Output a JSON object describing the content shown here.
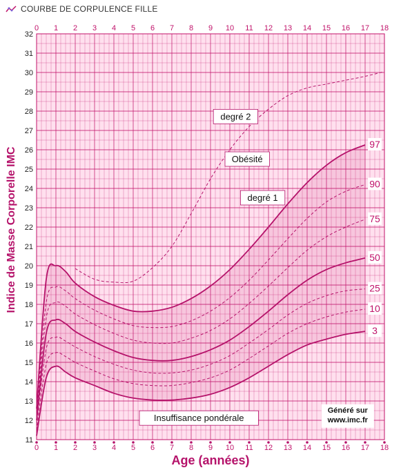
{
  "header": {
    "title": "COURBE DE CORPULENCE FILLE"
  },
  "chart_data": {
    "type": "line",
    "title": "COURBE DE CORPULENCE FILLE",
    "xlabel": "Age (années)",
    "ylabel": "Indice de Masse Corporelle  IMC",
    "xlim": [
      0,
      18
    ],
    "ylim": [
      11,
      32
    ],
    "x_ticks": [
      0,
      1,
      2,
      3,
      4,
      5,
      6,
      7,
      8,
      9,
      10,
      11,
      12,
      13,
      14,
      15,
      16,
      17,
      18
    ],
    "y_ticks": [
      11,
      12,
      13,
      14,
      15,
      16,
      17,
      18,
      19,
      20,
      21,
      22,
      23,
      24,
      25,
      26,
      27,
      28,
      29,
      30,
      31,
      32
    ],
    "grid": true,
    "colors": {
      "line": "#b5126a",
      "shade": "#f7c6dd",
      "background": "#ffe0ee",
      "grid": "#c0126a"
    },
    "series": [
      {
        "name": "3",
        "style": "solid",
        "x": [
          0,
          0.5,
          1,
          1.5,
          2,
          3,
          4,
          5,
          6,
          7,
          8,
          9,
          10,
          11,
          12,
          13,
          14,
          15,
          16,
          17
        ],
        "y": [
          11.2,
          14.2,
          14.8,
          14.5,
          14.2,
          13.8,
          13.4,
          13.15,
          13.05,
          13.05,
          13.15,
          13.35,
          13.7,
          14.2,
          14.8,
          15.4,
          15.9,
          16.2,
          16.45,
          16.6
        ]
      },
      {
        "name": "10",
        "style": "dashed",
        "x": [
          0,
          0.5,
          1,
          1.5,
          2,
          3,
          4,
          5,
          6,
          7,
          8,
          9,
          10,
          11,
          12,
          13,
          14,
          15,
          16,
          17
        ],
        "y": [
          11.5,
          14.9,
          15.5,
          15.3,
          15.0,
          14.55,
          14.15,
          13.9,
          13.8,
          13.8,
          13.95,
          14.2,
          14.6,
          15.2,
          15.85,
          16.5,
          17.0,
          17.35,
          17.6,
          17.75
        ]
      },
      {
        "name": "25",
        "style": "dashed",
        "x": [
          0,
          0.5,
          1,
          1.5,
          2,
          3,
          4,
          5,
          6,
          7,
          8,
          9,
          10,
          11,
          12,
          13,
          14,
          15,
          16,
          17
        ],
        "y": [
          11.8,
          15.7,
          16.3,
          16.1,
          15.8,
          15.3,
          14.9,
          14.6,
          14.45,
          14.45,
          14.6,
          14.9,
          15.35,
          16.0,
          16.7,
          17.45,
          18.05,
          18.45,
          18.7,
          18.8
        ]
      },
      {
        "name": "50",
        "style": "solid",
        "x": [
          0,
          0.5,
          1,
          1.5,
          2,
          3,
          4,
          5,
          6,
          7,
          8,
          9,
          10,
          11,
          12,
          13,
          14,
          15,
          16,
          17
        ],
        "y": [
          12.0,
          16.5,
          17.2,
          17.0,
          16.6,
          16.05,
          15.6,
          15.25,
          15.1,
          15.1,
          15.3,
          15.65,
          16.15,
          16.85,
          17.65,
          18.5,
          19.25,
          19.8,
          20.15,
          20.4
        ]
      },
      {
        "name": "75",
        "style": "dashed",
        "x": [
          0,
          0.5,
          1,
          1.5,
          2,
          3,
          4,
          5,
          6,
          7,
          8,
          9,
          10,
          11,
          12,
          13,
          14,
          15,
          16,
          17
        ],
        "y": [
          12.2,
          17.3,
          18.1,
          17.9,
          17.5,
          16.95,
          16.5,
          16.15,
          16.0,
          16.0,
          16.25,
          16.65,
          17.25,
          18.05,
          18.95,
          19.9,
          20.8,
          21.5,
          22.0,
          22.4
        ]
      },
      {
        "name": "90",
        "style": "dashed",
        "x": [
          0,
          0.5,
          1,
          1.5,
          2,
          3,
          4,
          5,
          6,
          7,
          8,
          9,
          10,
          11,
          12,
          13,
          14,
          15,
          16,
          17
        ],
        "y": [
          12.4,
          18.1,
          18.9,
          18.7,
          18.3,
          17.7,
          17.25,
          16.9,
          16.8,
          16.85,
          17.15,
          17.65,
          18.35,
          19.25,
          20.3,
          21.4,
          22.45,
          23.3,
          23.85,
          24.2
        ]
      },
      {
        "name": "97",
        "style": "solid",
        "x": [
          0,
          0.5,
          1,
          1.5,
          2,
          3,
          4,
          5,
          6,
          7,
          8,
          9,
          10,
          11,
          12,
          13,
          14,
          15,
          16,
          17
        ],
        "y": [
          12.6,
          19.3,
          20.0,
          19.7,
          19.1,
          18.4,
          17.95,
          17.65,
          17.65,
          17.85,
          18.3,
          18.95,
          19.8,
          20.85,
          22.0,
          23.2,
          24.3,
          25.2,
          25.85,
          26.25
        ]
      },
      {
        "name": "degré 2",
        "style": "dashed",
        "x": [
          2,
          3,
          4,
          5,
          6,
          7,
          8,
          9,
          10,
          11,
          12,
          13,
          14,
          15,
          16,
          17,
          18
        ],
        "y": [
          19.85,
          19.3,
          19.15,
          19.2,
          19.9,
          21.0,
          22.7,
          24.5,
          26.0,
          27.2,
          28.1,
          28.8,
          29.2,
          29.4,
          29.6,
          29.8,
          30.05
        ]
      }
    ],
    "annotations": [
      {
        "text": "degré 2",
        "x": 10.3,
        "y": 27.7
      },
      {
        "text": "Obésité",
        "x": 10.9,
        "y": 25.5
      },
      {
        "text": "degré 1",
        "x": 11.7,
        "y": 23.5
      },
      {
        "text": "Insuffisance pondérale",
        "x": 8.4,
        "y": 12.1
      }
    ],
    "percentile_labels": [
      "97",
      "90",
      "75",
      "50",
      "25",
      "10",
      "3"
    ],
    "credit": [
      "Généré sur",
      "www.imc.fr"
    ]
  }
}
